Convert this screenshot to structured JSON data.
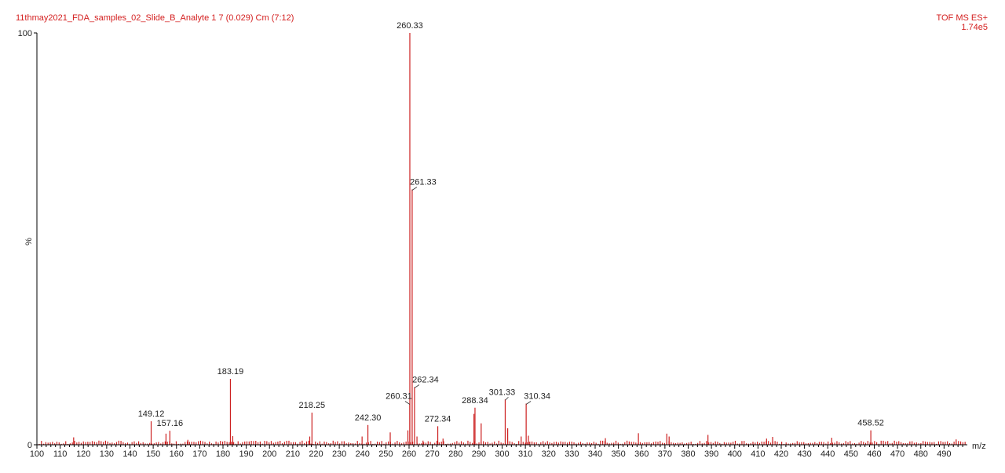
{
  "header": {
    "sample": "11thmay2021_FDA_samples_02_Slide_B_Analyte 1 7 (0.029) Cm (7:12)",
    "mode": "TOF MS ES+",
    "base_intensity": "1.74e5"
  },
  "chart_data": {
    "type": "bar",
    "xlabel": "m/z",
    "ylabel": "%",
    "xlim": [
      100,
      500
    ],
    "ylim": [
      0,
      100
    ],
    "y_ticks": [
      0,
      100
    ],
    "x_ticks": [
      100,
      110,
      120,
      130,
      140,
      150,
      160,
      170,
      180,
      190,
      200,
      210,
      220,
      230,
      240,
      250,
      260,
      270,
      280,
      290,
      300,
      310,
      320,
      330,
      340,
      350,
      360,
      370,
      380,
      390,
      400,
      410,
      420,
      430,
      440,
      450,
      460,
      470,
      480,
      490
    ],
    "colors": {
      "peaks": "#cc2020",
      "header": "#d42020"
    },
    "peaks": [
      {
        "mz": 115.8,
        "intensity": 1.8
      },
      {
        "mz": 149.12,
        "intensity": 5.7,
        "label": "149.12"
      },
      {
        "mz": 155.5,
        "intensity": 2.7
      },
      {
        "mz": 157.16,
        "intensity": 3.4,
        "label": "157.16"
      },
      {
        "mz": 164.9,
        "intensity": 1.2
      },
      {
        "mz": 183.19,
        "intensity": 16.0,
        "label": "183.19"
      },
      {
        "mz": 184.2,
        "intensity": 2.1
      },
      {
        "mz": 217.3,
        "intensity": 2.0
      },
      {
        "mz": 218.25,
        "intensity": 7.8,
        "label": "218.25"
      },
      {
        "mz": 239.8,
        "intensity": 2.0
      },
      {
        "mz": 242.3,
        "intensity": 4.8,
        "label": "242.30"
      },
      {
        "mz": 251.9,
        "intensity": 3.0
      },
      {
        "mz": 259.5,
        "intensity": 3.5
      },
      {
        "mz": 260.31,
        "intensity": 10.0,
        "label": "260.31"
      },
      {
        "mz": 260.33,
        "intensity": 100.0,
        "label": "260.33"
      },
      {
        "mz": 261.33,
        "intensity": 62.0,
        "label": "261.33"
      },
      {
        "mz": 262.34,
        "intensity": 14.0,
        "label": "262.34"
      },
      {
        "mz": 263.4,
        "intensity": 2.0
      },
      {
        "mz": 266.0,
        "intensity": 1.0
      },
      {
        "mz": 272.34,
        "intensity": 4.5,
        "label": "272.34"
      },
      {
        "mz": 274.6,
        "intensity": 1.5
      },
      {
        "mz": 287.9,
        "intensity": 7.5
      },
      {
        "mz": 288.34,
        "intensity": 9.0,
        "label": "288.34"
      },
      {
        "mz": 291.0,
        "intensity": 5.2
      },
      {
        "mz": 301.33,
        "intensity": 11.0,
        "label": "301.33"
      },
      {
        "mz": 302.4,
        "intensity": 4.0
      },
      {
        "mz": 308.2,
        "intensity": 2.0
      },
      {
        "mz": 310.34,
        "intensity": 10.0,
        "label": "310.34"
      },
      {
        "mz": 311.3,
        "intensity": 2.2
      },
      {
        "mz": 344.4,
        "intensity": 1.6
      },
      {
        "mz": 358.6,
        "intensity": 2.8
      },
      {
        "mz": 370.8,
        "intensity": 2.7
      },
      {
        "mz": 371.8,
        "intensity": 2.0
      },
      {
        "mz": 388.5,
        "intensity": 2.4
      },
      {
        "mz": 413.7,
        "intensity": 1.5
      },
      {
        "mz": 416.3,
        "intensity": 1.9
      },
      {
        "mz": 441.7,
        "intensity": 1.7
      },
      {
        "mz": 458.52,
        "intensity": 3.5,
        "label": "458.52"
      },
      {
        "mz": 495.2,
        "intensity": 1.3
      }
    ]
  }
}
